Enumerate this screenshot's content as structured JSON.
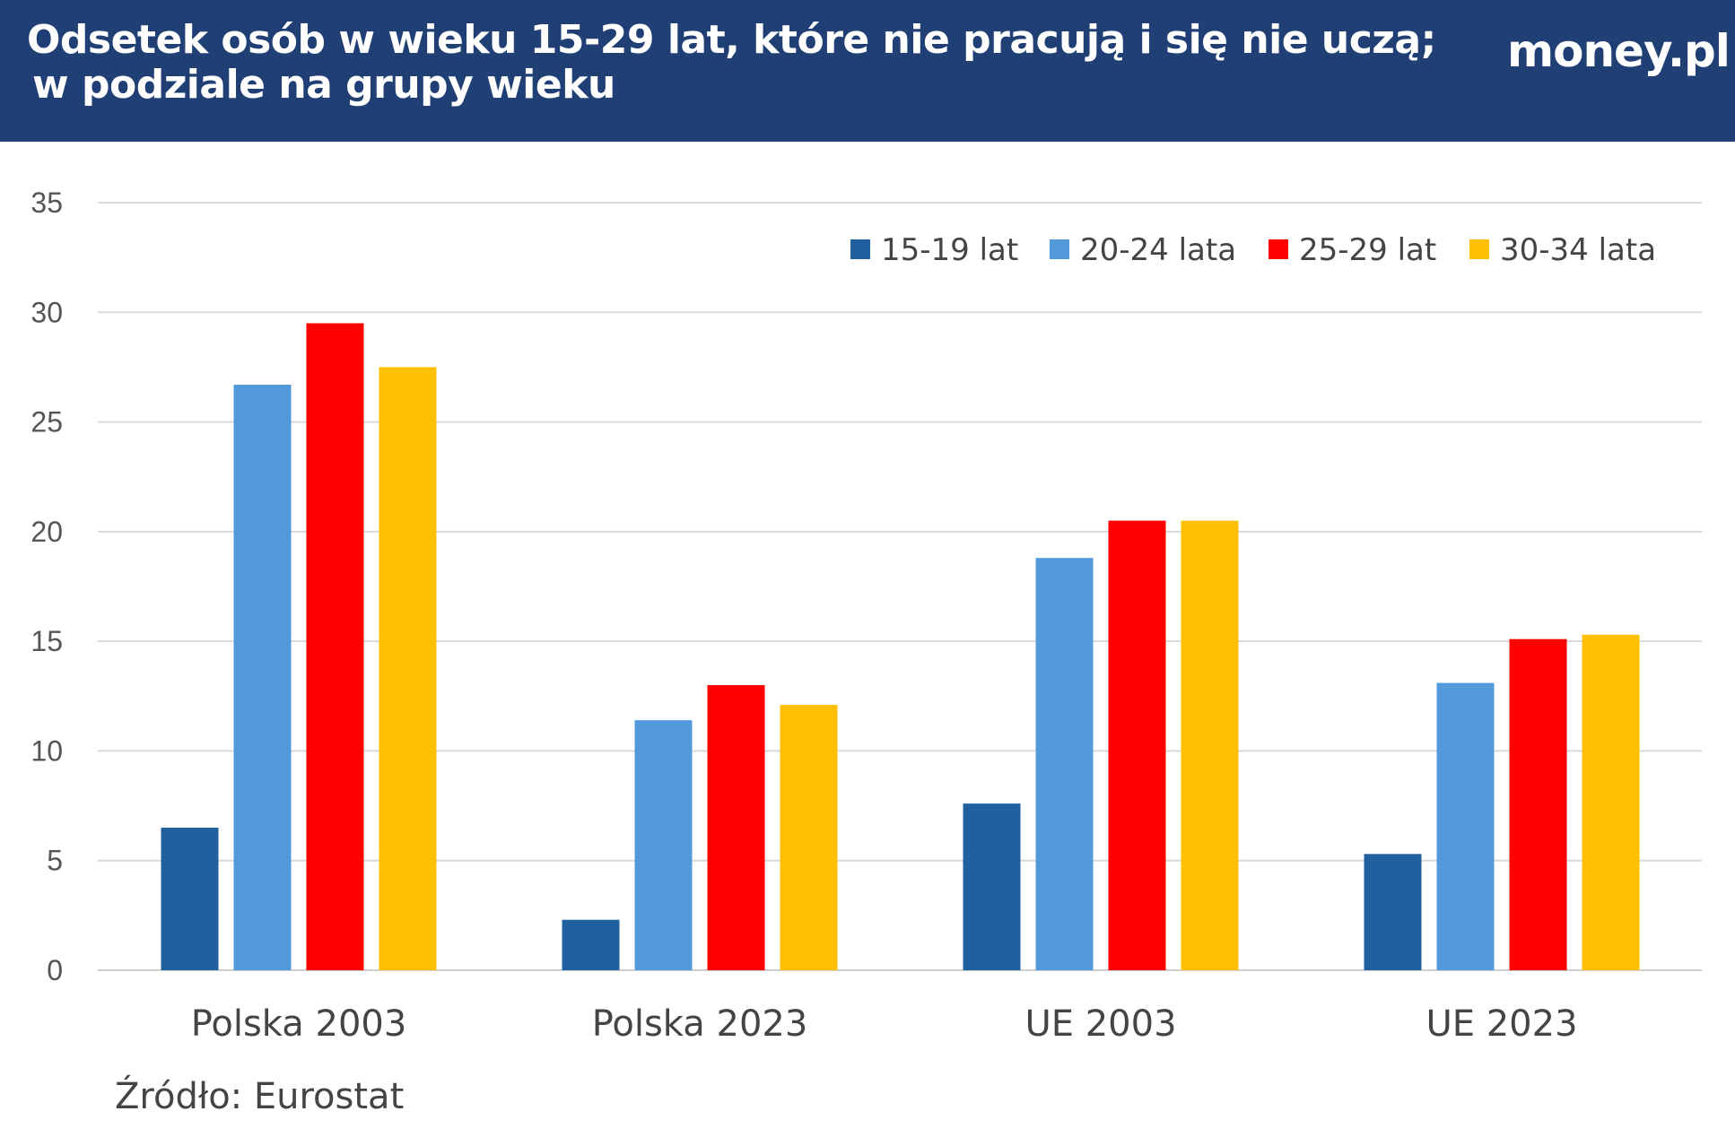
{
  "header": {
    "title_line1": "Odsetek osób w wieku 15-29 lat, które nie pracują i się nie uczą;",
    "title_line2": "w podziale na grupy wieku",
    "logo": "money.pl",
    "background": "#203f74"
  },
  "source": "Źródło: Eurostat",
  "chart_data": {
    "type": "bar",
    "title": "Odsetek osób w wieku 15-29 lat, które nie pracują i się nie uczą; w podziale na grupy wieku",
    "categories": [
      "Polska 2003",
      "Polska 2023",
      "UE 2003",
      "UE 2023"
    ],
    "ylim": [
      0,
      35
    ],
    "yticks": [
      0,
      5,
      10,
      15,
      20,
      25,
      30,
      35
    ],
    "grid": true,
    "legend_position": "top-right",
    "series": [
      {
        "name": "15-19 lat",
        "color": "#21609e",
        "values": [
          6.5,
          2.3,
          7.6,
          5.3
        ]
      },
      {
        "name": "20-24 lata",
        "color": "#5199db",
        "values": [
          26.7,
          11.4,
          18.8,
          13.1
        ]
      },
      {
        "name": "25-29 lat",
        "color": "#fe0000",
        "values": [
          29.5,
          13.0,
          20.5,
          15.1
        ]
      },
      {
        "name": "30-34 lata",
        "color": "#fec000",
        "values": [
          27.5,
          12.1,
          20.5,
          15.3
        ]
      }
    ]
  }
}
